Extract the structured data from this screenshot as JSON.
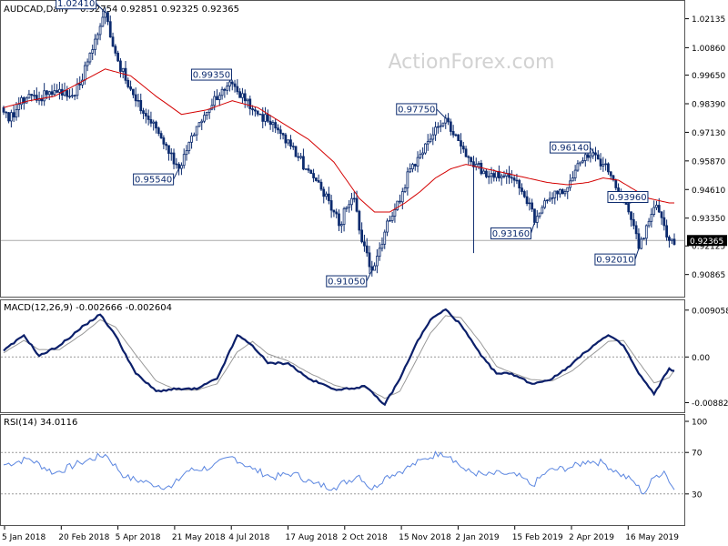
{
  "header": {
    "symbol_label": "AUDCAD,Daily",
    "ohlc_label": "0.92754 0.92851 0.92325 0.92365"
  },
  "watermark": "ActionForex.com",
  "colors": {
    "price": "#0b2a6e",
    "ma": "#d40000",
    "macd": "#0b1f6a",
    "signal": "#999999",
    "rsi": "#5b86e0",
    "grid": "#999999"
  },
  "chart_data": [
    {
      "type": "candlestick",
      "title": "AUDCAD,Daily",
      "ylim": [
        0.9005,
        1.0276
      ],
      "yticks": [
        "1.02135",
        "1.00860",
        "0.99650",
        "0.98390",
        "0.97130",
        "0.95870",
        "0.94610",
        "0.93350",
        "0.92125",
        "0.90865"
      ],
      "x_labels": [
        "5 Jan 2018",
        "20 Feb 2018",
        "5 Apr 2018",
        "21 May 2018",
        "4 Jul 2018",
        "17 Aug 2018",
        "2 Oct 2018",
        "15 Nov 2018",
        "2 Jan 2019",
        "15 Feb 2019",
        "2 Apr 2019",
        "16 May 2019"
      ],
      "last_price_label": "0.92365",
      "last_price": 0.92365,
      "annotations": [
        "1.02410",
        "0.99350",
        "0.95540",
        "0.97750",
        "0.91050",
        "0.93160",
        "0.96140",
        "0.93960",
        "0.92010"
      ],
      "price_anchors": [
        [
          0,
          0.9802
        ],
        [
          2,
          0.9763
        ],
        [
          6,
          0.9836
        ],
        [
          10,
          0.9881
        ],
        [
          14,
          0.9861
        ],
        [
          18,
          0.9892
        ],
        [
          22,
          0.9902
        ],
        [
          26,
          0.9872
        ],
        [
          30,
          0.9922
        ],
        [
          34,
          1.0062
        ],
        [
          38,
          1.018
        ],
        [
          40,
          1.0241
        ],
        [
          44,
          1.0062
        ],
        [
          48,
          0.9942
        ],
        [
          52,
          0.9852
        ],
        [
          56,
          0.9785
        ],
        [
          60,
          0.9732
        ],
        [
          64,
          0.9655
        ],
        [
          68,
          0.9572
        ],
        [
          69,
          0.9554
        ],
        [
          72,
          0.9632
        ],
        [
          75,
          0.9702
        ],
        [
          78,
          0.9762
        ],
        [
          82,
          0.9832
        ],
        [
          86,
          0.9902
        ],
        [
          89,
          0.9935
        ],
        [
          92,
          0.9892
        ],
        [
          95,
          0.9852
        ],
        [
          98,
          0.9812
        ],
        [
          101,
          0.9792
        ],
        [
          104,
          0.9762
        ],
        [
          107,
          0.9732
        ],
        [
          110,
          0.9702
        ],
        [
          113,
          0.9652
        ],
        [
          116,
          0.9602
        ],
        [
          119,
          0.9552
        ],
        [
          122,
          0.9512
        ],
        [
          125,
          0.9462
        ],
        [
          128,
          0.9412
        ],
        [
          130,
          0.9362
        ],
        [
          132,
          0.9302
        ],
        [
          135,
          0.9382
        ],
        [
          138,
          0.9422
        ],
        [
          140,
          0.9282
        ],
        [
          143,
          0.9182
        ],
        [
          145,
          0.9105
        ],
        [
          148,
          0.9202
        ],
        [
          151,
          0.9322
        ],
        [
          154,
          0.9372
        ],
        [
          157,
          0.9452
        ],
        [
          160,
          0.9552
        ],
        [
          163,
          0.9602
        ],
        [
          166,
          0.9662
        ],
        [
          169,
          0.9702
        ],
        [
          172,
          0.9742
        ],
        [
          174,
          0.9775
        ],
        [
          177,
          0.9702
        ],
        [
          180,
          0.9652
        ],
        [
          183,
          0.9602
        ],
        [
          186,
          0.9572
        ],
        [
          189,
          0.9542
        ],
        [
          192,
          0.9532
        ],
        [
          195,
          0.9512
        ],
        [
          198,
          0.9532
        ],
        [
          201,
          0.9502
        ],
        [
          204,
          0.9452
        ],
        [
          207,
          0.9402
        ],
        [
          209,
          0.9316
        ],
        [
          212,
          0.9382
        ],
        [
          215,
          0.9422
        ],
        [
          218,
          0.9442
        ],
        [
          221,
          0.9452
        ],
        [
          224,
          0.9512
        ],
        [
          227,
          0.9582
        ],
        [
          230,
          0.9602
        ],
        [
          233,
          0.9614
        ],
        [
          236,
          0.9572
        ],
        [
          239,
          0.9522
        ],
        [
          242,
          0.9452
        ],
        [
          245,
          0.9396
        ],
        [
          248,
          0.9302
        ],
        [
          250,
          0.9201
        ],
        [
          253,
          0.9302
        ],
        [
          256,
          0.9382
        ],
        [
          258,
          0.9362
        ],
        [
          260,
          0.9302
        ],
        [
          262,
          0.92365
        ]
      ],
      "ma_anchors": [
        [
          0,
          0.9822
        ],
        [
          10,
          0.9852
        ],
        [
          20,
          0.9872
        ],
        [
          30,
          0.9932
        ],
        [
          40,
          0.9992
        ],
        [
          50,
          0.9962
        ],
        [
          60,
          0.9872
        ],
        [
          70,
          0.9792
        ],
        [
          80,
          0.9812
        ],
        [
          90,
          0.9852
        ],
        [
          100,
          0.9822
        ],
        [
          110,
          0.9752
        ],
        [
          120,
          0.9682
        ],
        [
          130,
          0.9582
        ],
        [
          140,
          0.9422
        ],
        [
          146,
          0.9362
        ],
        [
          152,
          0.9362
        ],
        [
          158,
          0.9402
        ],
        [
          164,
          0.9452
        ],
        [
          170,
          0.9512
        ],
        [
          176,
          0.9552
        ],
        [
          182,
          0.9572
        ],
        [
          190,
          0.9552
        ],
        [
          198,
          0.9532
        ],
        [
          206,
          0.9512
        ],
        [
          214,
          0.9492
        ],
        [
          222,
          0.9482
        ],
        [
          230,
          0.9492
        ],
        [
          236,
          0.9512
        ],
        [
          242,
          0.9502
        ],
        [
          248,
          0.9462
        ],
        [
          254,
          0.9422
        ],
        [
          262,
          0.9402
        ]
      ]
    },
    {
      "type": "line",
      "title": "MACD(12,26,9) -0.002666 -0.002604",
      "ylim": [
        -0.0098,
        0.0099
      ],
      "yticks": [
        "0.009058",
        "0.00",
        "-0.008826"
      ],
      "series": [
        {
          "name": "MACD(12,26,9)",
          "anchors": [
            [
              0,
              0.0012
            ],
            [
              8,
              0.0042
            ],
            [
              14,
              0.0002
            ],
            [
              22,
              0.0022
            ],
            [
              32,
              0.0062
            ],
            [
              38,
              0.0082
            ],
            [
              44,
              0.0042
            ],
            [
              52,
              -0.0032
            ],
            [
              60,
              -0.0066
            ],
            [
              68,
              -0.0062
            ],
            [
              76,
              -0.0062
            ],
            [
              84,
              -0.0042
            ],
            [
              92,
              0.0042
            ],
            [
              98,
              0.0022
            ],
            [
              104,
              -0.0012
            ],
            [
              112,
              -0.0012
            ],
            [
              120,
              -0.0042
            ],
            [
              130,
              -0.0062
            ],
            [
              136,
              -0.0062
            ],
            [
              142,
              -0.0056
            ],
            [
              150,
              -0.0092
            ],
            [
              156,
              -0.0042
            ],
            [
              162,
              0.0022
            ],
            [
              168,
              0.0072
            ],
            [
              174,
              0.0092
            ],
            [
              180,
              0.0062
            ],
            [
              188,
              0.0002
            ],
            [
              194,
              -0.0032
            ],
            [
              200,
              -0.0032
            ],
            [
              208,
              -0.0052
            ],
            [
              216,
              -0.0042
            ],
            [
              224,
              -0.0012
            ],
            [
              232,
              0.0022
            ],
            [
              238,
              0.0042
            ],
            [
              244,
              0.0022
            ],
            [
              250,
              -0.0032
            ],
            [
              256,
              -0.0072
            ],
            [
              262,
              -0.0022
            ],
            [
              264,
              -0.0027
            ]
          ]
        },
        {
          "name": "Signal",
          "anchors": [
            [
              0,
              0.0008
            ],
            [
              8,
              0.0032
            ],
            [
              14,
              0.0014
            ],
            [
              22,
              0.0014
            ],
            [
              32,
              0.0048
            ],
            [
              38,
              0.0072
            ],
            [
              44,
              0.0058
            ],
            [
              52,
              0.0004
            ],
            [
              60,
              -0.0046
            ],
            [
              68,
              -0.0064
            ],
            [
              76,
              -0.0064
            ],
            [
              84,
              -0.0052
            ],
            [
              92,
              0.001
            ],
            [
              98,
              0.003
            ],
            [
              104,
              0.0006
            ],
            [
              112,
              -0.0008
            ],
            [
              120,
              -0.003
            ],
            [
              130,
              -0.0054
            ],
            [
              136,
              -0.0062
            ],
            [
              142,
              -0.0058
            ],
            [
              150,
              -0.008
            ],
            [
              156,
              -0.0066
            ],
            [
              162,
              -0.001
            ],
            [
              168,
              0.0046
            ],
            [
              174,
              0.008
            ],
            [
              180,
              0.0076
            ],
            [
              188,
              0.0026
            ],
            [
              194,
              -0.0018
            ],
            [
              200,
              -0.003
            ],
            [
              208,
              -0.0044
            ],
            [
              216,
              -0.0046
            ],
            [
              224,
              -0.0026
            ],
            [
              232,
              0.0006
            ],
            [
              238,
              0.003
            ],
            [
              244,
              0.0032
            ],
            [
              250,
              -0.001
            ],
            [
              256,
              -0.005
            ],
            [
              262,
              -0.004
            ],
            [
              264,
              -0.0026
            ]
          ]
        }
      ]
    },
    {
      "type": "line",
      "title": "RSI(14) 34.0116",
      "ylim": [
        0,
        100
      ],
      "yticks": [
        "100",
        "70",
        "30",
        "0"
      ],
      "series": [
        {
          "name": "RSI(14)",
          "anchors": [
            [
              0,
              58
            ],
            [
              10,
              64
            ],
            [
              20,
              50
            ],
            [
              30,
              60
            ],
            [
              40,
              68
            ],
            [
              48,
              46
            ],
            [
              58,
              40
            ],
            [
              66,
              36
            ],
            [
              72,
              52
            ],
            [
              82,
              56
            ],
            [
              90,
              66
            ],
            [
              98,
              54
            ],
            [
              106,
              46
            ],
            [
              114,
              50
            ],
            [
              122,
              40
            ],
            [
              130,
              36
            ],
            [
              140,
              48
            ],
            [
              145,
              34
            ],
            [
              150,
              46
            ],
            [
              158,
              54
            ],
            [
              166,
              64
            ],
            [
              172,
              70
            ],
            [
              176,
              66
            ],
            [
              182,
              52
            ],
            [
              190,
              48
            ],
            [
              196,
              50
            ],
            [
              204,
              46
            ],
            [
              208,
              38
            ],
            [
              214,
              52
            ],
            [
              224,
              56
            ],
            [
              230,
              62
            ],
            [
              236,
              60
            ],
            [
              242,
              50
            ],
            [
              248,
              42
            ],
            [
              252,
              30
            ],
            [
              256,
              46
            ],
            [
              260,
              52
            ],
            [
              264,
              34
            ]
          ]
        }
      ]
    }
  ]
}
